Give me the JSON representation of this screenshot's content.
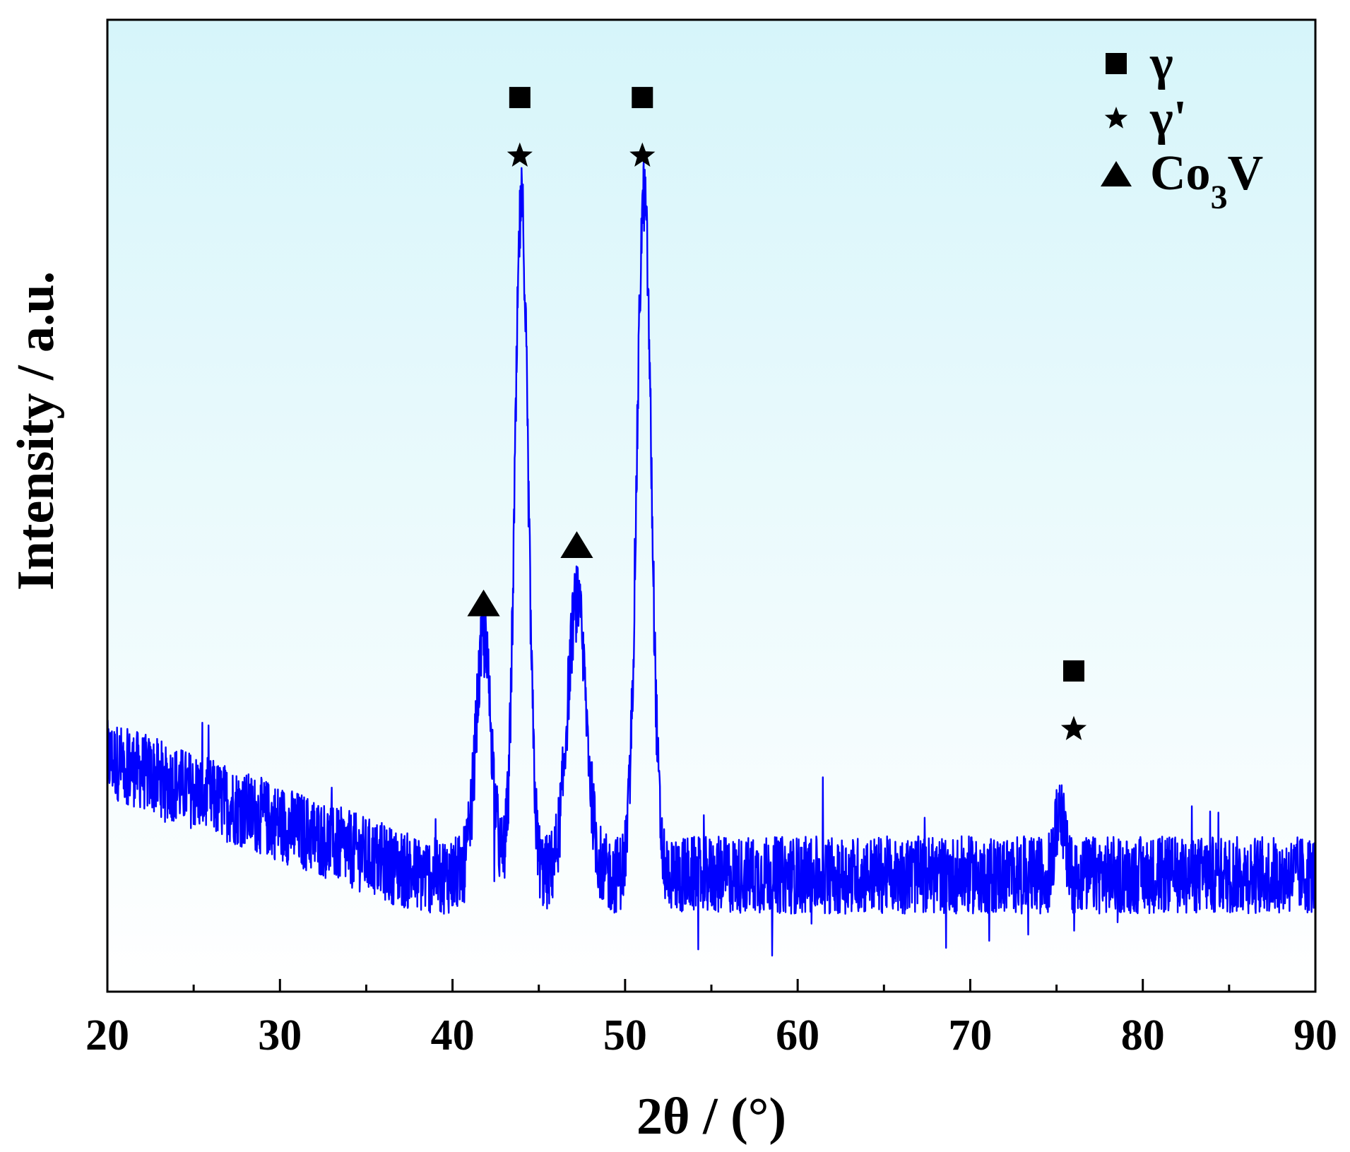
{
  "chart_data": {
    "type": "line",
    "xlabel": "2θ  / (°)",
    "ylabel": "Intensity / a.u.",
    "xlim": [
      20,
      90
    ],
    "ylim": [
      0,
      100
    ],
    "x_ticks": [
      20,
      30,
      40,
      50,
      60,
      70,
      80,
      90
    ],
    "x_minor_ticks": [
      25,
      35,
      45,
      55,
      65,
      75,
      85
    ],
    "grid": false,
    "background": "gradient from light cyan (#d6f5fa) at top to white at bottom",
    "line_color": "#0000ff",
    "legend": {
      "position": "top-right",
      "entries": [
        {
          "marker": "square",
          "label": "γ"
        },
        {
          "marker": "star",
          "label": "γ'"
        },
        {
          "marker": "triangle",
          "label": "Co",
          "subscript": "3",
          "suffix": "V"
        }
      ]
    },
    "series": [
      {
        "marker_color": "#0000ff",
        "peaks": [
          {
            "x": 41.8,
            "y": 36,
            "width": 0.45
          },
          {
            "x": 44.0,
            "y": 81,
            "width": 0.38
          },
          {
            "x": 47.2,
            "y": 40,
            "width": 0.55
          },
          {
            "x": 51.1,
            "y": 82,
            "width": 0.42
          },
          {
            "x": 75.2,
            "y": 19,
            "width": 0.25
          }
        ],
        "background_start": 24,
        "background_end": 12,
        "noise": 4
      }
    ],
    "annotations": [
      {
        "x": 43.9,
        "marker": "square",
        "y": 92
      },
      {
        "x": 43.9,
        "marker": "star",
        "y": 86
      },
      {
        "x": 51.0,
        "marker": "square",
        "y": 92
      },
      {
        "x": 51.0,
        "marker": "star",
        "y": 86
      },
      {
        "x": 41.8,
        "marker": "triangle",
        "y": 40
      },
      {
        "x": 47.2,
        "marker": "triangle",
        "y": 46
      },
      {
        "x": 76.0,
        "marker": "square",
        "y": 33
      },
      {
        "x": 76.0,
        "marker": "star",
        "y": 27
      }
    ]
  }
}
